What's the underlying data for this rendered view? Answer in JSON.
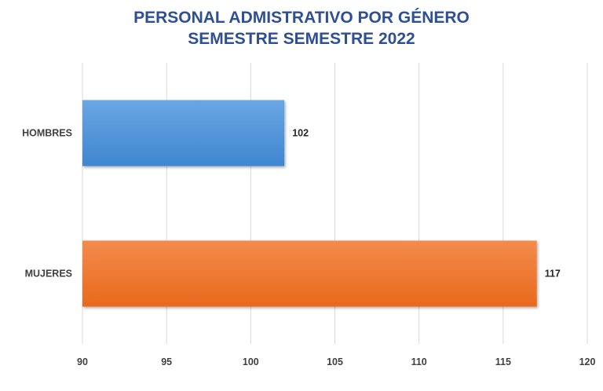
{
  "chart_data": {
    "type": "bar",
    "orientation": "horizontal",
    "title": [
      "PERSONAL ADMISTRATIVO POR GÉNERO",
      "SEMESTRE SEMESTRE 2022"
    ],
    "categories": [
      "HOMBRES",
      "MUJERES"
    ],
    "values": [
      102,
      117
    ],
    "bar_colors": [
      "#4a8fd6",
      "#f07a2a"
    ],
    "xlim": [
      90,
      120
    ],
    "x_ticks": [
      90,
      95,
      100,
      105,
      110,
      115,
      120
    ],
    "xlabel": "",
    "ylabel": "",
    "grid": true,
    "legend": "none"
  }
}
